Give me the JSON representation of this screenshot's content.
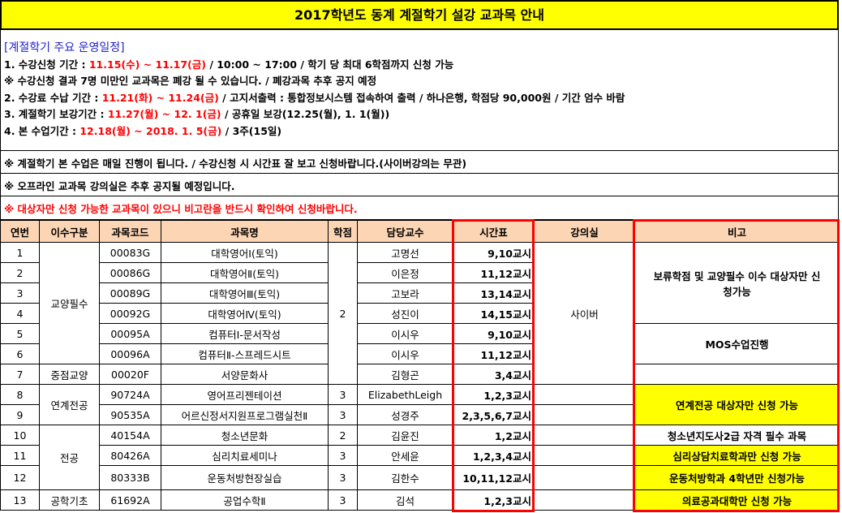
{
  "title": "2017학년도 동계 계절학기 설강 교과목 안내",
  "schedule": {
    "heading": "[계절학기 주요 운영일정]",
    "lines": [
      [
        {
          "t": "1. 수강신청 기간 : "
        },
        {
          "t": "11.15(수) ~ 11.17(금)",
          "red": true
        },
        {
          "t": " / 10:00 ~ 17:00 / 학기 당 최대 6학점까지 신청 가능"
        }
      ],
      [
        {
          "t": "※ 수강신청 결과 7명 미만인 교과목은 폐강 될 수 있습니다. / 폐강과목 추후 공지 예정"
        }
      ],
      [
        {
          "t": "2. 수강료 수납 기간 : "
        },
        {
          "t": "11.21(화) ~ 11.24(금)",
          "red": true
        },
        {
          "t": " / 고지서출력 : 통합정보시스템 접속하여 출력 / 하나은행, 학점당 90,000원 / 기간 엄수 바람"
        }
      ],
      [
        {
          "t": "3. 계절학기 보강기간 : "
        },
        {
          "t": "11.27(월) ~ 12. 1(금)",
          "red": true
        },
        {
          "t": " / 공휴일 보강(12.25(월), 1. 1(월))"
        }
      ],
      [
        {
          "t": "4. 본 수업기간 : "
        },
        {
          "t": "12.18(월) ~ 2018. 1. 5(금)",
          "red": true
        },
        {
          "t": " / 3주(15일)"
        }
      ]
    ]
  },
  "notes": [
    "※ 계절학기 본 수업은 매일 진행이 됩니다. / 수강신청 시 시간표 잘 보고 신청바랍니다.(사이버강의는 무관)",
    "※ 오프라인 교과목 강의실은 추후 공지될 예정입니다.",
    "※ 대상자만 신청 가능한 교과목이 있으니 비고란을 반드시 확인하여 신청바랍니다."
  ],
  "colors": {
    "title_bg": "#ffff00",
    "header_bg": "#fcd5b4",
    "highlight": "#ff0000",
    "note_yellow": "#ffff00"
  },
  "table": {
    "headers": [
      "연번",
      "이수구분",
      "과목코드",
      "과목명",
      "학점",
      "담당교수",
      "시간표",
      "강의실",
      "비고"
    ],
    "rows": [
      {
        "no": "1",
        "code": "00083G",
        "name": "대학영어Ⅰ(토익)",
        "prof": "고명선",
        "time": "9,10교시"
      },
      {
        "no": "2",
        "code": "00086G",
        "name": "대학영어Ⅱ(토익)",
        "prof": "이은정",
        "time": "11,12교시"
      },
      {
        "no": "3",
        "code": "00089G",
        "name": "대학영어Ⅲ(토익)",
        "prof": "고보라",
        "time": "13,14교시"
      },
      {
        "no": "4",
        "code": "00092G",
        "name": "대학영어Ⅳ(토익)",
        "prof": "성진이",
        "time": "14,15교시"
      },
      {
        "no": "5",
        "code": "00095A",
        "name": "컴퓨터Ⅰ-문서작성",
        "prof": "이시우",
        "time": "9,10교시"
      },
      {
        "no": "6",
        "code": "00096A",
        "name": "컴퓨터Ⅱ-스프레드시트",
        "prof": "이시우",
        "time": "11,12교시"
      },
      {
        "no": "7",
        "code": "00020F",
        "name": "서양문화사",
        "prof": "김형곤",
        "time": "3,4교시"
      },
      {
        "no": "8",
        "code": "90724A",
        "name": "영어프리젠테이션",
        "credit": "3",
        "prof": "ElizabethLeigh",
        "time": "1,2,3교시"
      },
      {
        "no": "9",
        "code": "90535A",
        "name": "어르신정서지원프로그램실천Ⅱ",
        "credit": "3",
        "prof": "성경주",
        "time": "2,3,5,6,7교시"
      },
      {
        "no": "10",
        "code": "40154A",
        "name": "청소년문화",
        "credit": "2",
        "prof": "김윤진",
        "time": "1,2교시"
      },
      {
        "no": "11",
        "code": "80426A",
        "name": "심리치료세미나",
        "credit": "3",
        "prof": "안세윤",
        "time": "1,2,3,4교시"
      },
      {
        "no": "12",
        "code": "80333B",
        "name": "운동처방현장실습",
        "credit": "3",
        "prof": "김한수",
        "time": "10,11,12교시"
      },
      {
        "no": "13",
        "code": "61692A",
        "name": "공업수학Ⅱ",
        "credit": "3",
        "prof": "김석",
        "time": "1,2,3교시"
      }
    ],
    "categories": [
      {
        "label": "교양필수",
        "span": 6
      },
      {
        "label": "중점교양",
        "span": 1
      },
      {
        "label": "연계전공",
        "span": 2
      },
      {
        "label": "전공",
        "span": 3
      },
      {
        "label": "공학기초",
        "span": 1
      }
    ],
    "shared_credit": "2",
    "room": "사이버",
    "remarks": [
      {
        "text": "보류학점 및 교양필수 이수 대상자만 신청가능",
        "span": 4
      },
      {
        "text": "MOS수업진행",
        "span": 2
      },
      {
        "text": "",
        "span": 1
      },
      {
        "text": "연계전공 대상자만 신청 가능",
        "span": 2,
        "yellow": true
      },
      {
        "text": "청소년지도사2급 자격 필수 과목",
        "span": 1
      },
      {
        "text": "심리상담치료학과만 신청 가능",
        "span": 1,
        "yellow": true
      },
      {
        "text": "운동처방학과 4학년만 신청가능",
        "span": 1,
        "yellow": true
      },
      {
        "text": "의료공과대학만 신청 가능",
        "span": 1,
        "yellow": true
      }
    ]
  }
}
